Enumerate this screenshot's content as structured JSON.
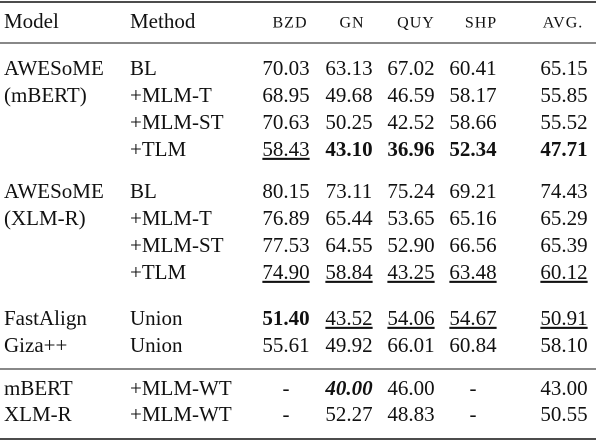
{
  "table": {
    "header": [
      "Model",
      "Method",
      "BZD",
      "GN",
      "QUY",
      "SHP",
      "AVG."
    ],
    "groups": [
      {
        "rows": [
          {
            "model": "AWESoME",
            "method": "BL",
            "values": [
              "70.03",
              "63.13",
              "67.02",
              "60.41",
              "65.15"
            ]
          },
          {
            "model": "(mBERT)",
            "method": "+MLM-T",
            "values": [
              "68.95",
              "49.68",
              "46.59",
              "58.17",
              "55.85"
            ]
          },
          {
            "method": "+MLM-ST",
            "values": [
              "70.63",
              "50.25",
              "42.52",
              "58.66",
              "55.52"
            ]
          },
          {
            "method": "+TLM",
            "values": [
              {
                "text": "58.43",
                "underline": true
              },
              {
                "text": "43.10",
                "bold": true
              },
              {
                "text": "36.96",
                "bold": true
              },
              {
                "text": "52.34",
                "bold": true
              },
              {
                "text": "47.71",
                "bold": true
              }
            ]
          }
        ]
      },
      {
        "rows": [
          {
            "model": "AWESoME",
            "method": "BL",
            "values": [
              "80.15",
              "73.11",
              "75.24",
              "69.21",
              "74.43"
            ]
          },
          {
            "model": "(XLM-R)",
            "method": "+MLM-T",
            "values": [
              "76.89",
              "65.44",
              "53.65",
              "65.16",
              "65.29"
            ]
          },
          {
            "method": "+MLM-ST",
            "values": [
              "77.53",
              "64.55",
              "52.90",
              "66.56",
              "65.39"
            ]
          },
          {
            "method": "+TLM",
            "values": [
              {
                "text": "74.90",
                "underline": true
              },
              {
                "text": "58.84",
                "underline": true
              },
              {
                "text": "43.25",
                "underline": true
              },
              {
                "text": "63.48",
                "underline": true
              },
              {
                "text": "60.12",
                "underline": true
              }
            ]
          }
        ]
      },
      {
        "rows": [
          {
            "model": "FastAlign",
            "method": "Union",
            "values": [
              {
                "text": "51.40",
                "bold": true
              },
              {
                "text": "43.52",
                "underline": true
              },
              {
                "text": "54.06",
                "underline": true
              },
              {
                "text": "54.67",
                "underline": true
              },
              {
                "text": "50.91",
                "underline": true
              }
            ]
          },
          {
            "model": "Giza++",
            "method": "Union",
            "values": [
              "55.61",
              "49.92",
              "66.01",
              "60.84",
              "58.10"
            ]
          }
        ]
      },
      {
        "rows": [
          {
            "model": "mBERT",
            "method": "+MLM-WT",
            "values": [
              "-",
              {
                "text": "40.00",
                "bold": true,
                "italic": true
              },
              "46.00",
              "-",
              "43.00"
            ]
          },
          {
            "model": "XLM-R",
            "method": "+MLM-WT",
            "values": [
              "-",
              "52.27",
              "48.83",
              "-",
              "50.55"
            ]
          }
        ]
      }
    ]
  }
}
